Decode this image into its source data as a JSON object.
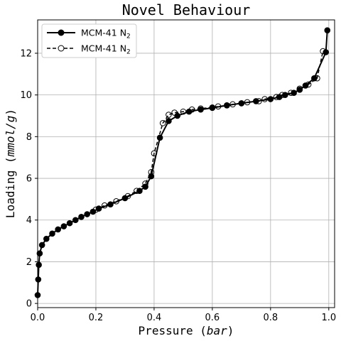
{
  "chart_data": {
    "type": "line",
    "title": "Novel Behaviour",
    "xlabel": {
      "text": "Pressure ",
      "unit": "bar"
    },
    "ylabel": {
      "text": "Loading ",
      "unit": "mmol/g"
    },
    "xlim": [
      0.0,
      1.02
    ],
    "ylim": [
      -0.2,
      13.6
    ],
    "grid": true,
    "legend_position": "top-left",
    "x_ticks": [
      0.0,
      0.2,
      0.4,
      0.6,
      0.8,
      1.0
    ],
    "x_tick_labels": [
      "0.0",
      "0.2",
      "0.4",
      "0.6",
      "0.8",
      "1.0"
    ],
    "y_ticks": [
      0,
      2,
      4,
      6,
      8,
      10,
      12
    ],
    "y_tick_labels": [
      "0",
      "2",
      "4",
      "6",
      "8",
      "10",
      "12"
    ],
    "series": [
      {
        "name": "MCM-41 N",
        "name_subscript": "2",
        "style": "solid",
        "marker": "filled-circle",
        "color": "#000000",
        "x": [
          0.0,
          0.002,
          0.004,
          0.007,
          0.015,
          0.03,
          0.05,
          0.07,
          0.09,
          0.11,
          0.13,
          0.15,
          0.17,
          0.19,
          0.21,
          0.25,
          0.3,
          0.35,
          0.37,
          0.39,
          0.42,
          0.45,
          0.48,
          0.52,
          0.56,
          0.6,
          0.65,
          0.7,
          0.75,
          0.8,
          0.83,
          0.85,
          0.88,
          0.9,
          0.92,
          0.95,
          0.99,
          0.995
        ],
        "y": [
          0.4,
          1.15,
          1.85,
          2.4,
          2.8,
          3.1,
          3.35,
          3.55,
          3.7,
          3.85,
          4.0,
          4.15,
          4.28,
          4.4,
          4.55,
          4.75,
          5.05,
          5.4,
          5.6,
          6.1,
          7.95,
          8.75,
          9.0,
          9.2,
          9.3,
          9.38,
          9.5,
          9.6,
          9.7,
          9.8,
          9.9,
          10.0,
          10.1,
          10.25,
          10.45,
          10.8,
          12.05,
          13.1
        ]
      },
      {
        "name": "MCM-41 N",
        "name_subscript": "2",
        "style": "dashed",
        "marker": "open-circle",
        "color": "#000000",
        "x": [
          0.2,
          0.23,
          0.27,
          0.31,
          0.34,
          0.37,
          0.39,
          0.4,
          0.43,
          0.45,
          0.47,
          0.5,
          0.53,
          0.56,
          0.6,
          0.62,
          0.65,
          0.67,
          0.7,
          0.72,
          0.76,
          0.78,
          0.82,
          0.84,
          0.87,
          0.9,
          0.93,
          0.96,
          0.98
        ],
        "y": [
          4.5,
          4.7,
          4.9,
          5.15,
          5.4,
          5.75,
          6.3,
          7.2,
          8.65,
          9.05,
          9.15,
          9.2,
          9.3,
          9.35,
          9.4,
          9.45,
          9.5,
          9.55,
          9.6,
          9.65,
          9.7,
          9.8,
          9.9,
          10.0,
          10.1,
          10.3,
          10.5,
          10.8,
          12.1
        ]
      }
    ]
  }
}
